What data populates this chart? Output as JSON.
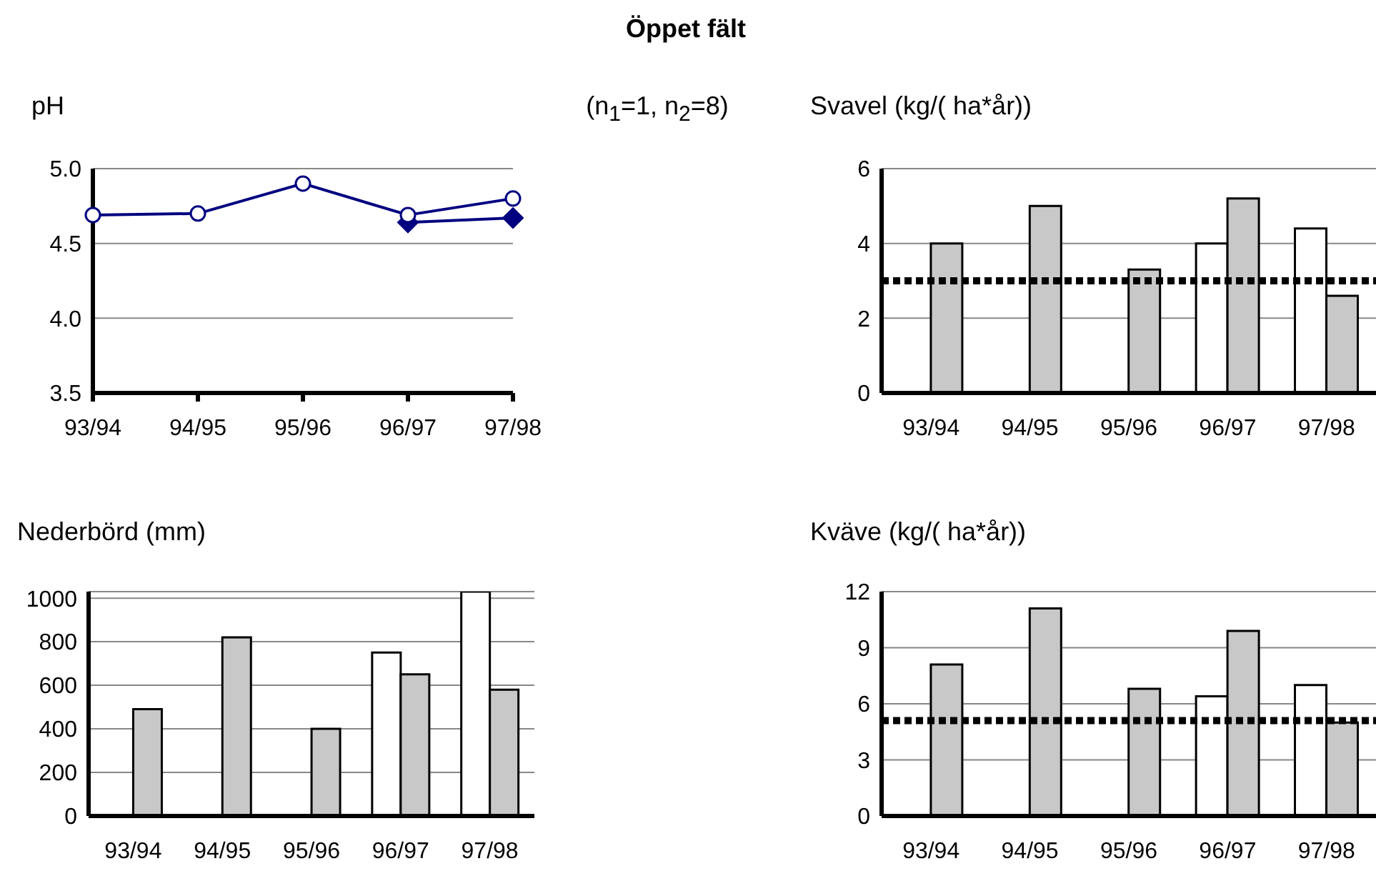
{
  "chart_data": [
    {
      "type": "other",
      "title": "Öppet fält",
      "subtitle": "(n$_{1}$=1, n$_{2}$=8)"
    },
    {
      "type": "line",
      "ylabel": "pH",
      "categories": [
        "93/94",
        "94/95",
        "95/96",
        "96/97",
        "97/98"
      ],
      "series": [
        {
          "color": "#000080",
          "marker": "diamond",
          "values": [
            null,
            null,
            null,
            4.64,
            4.67
          ]
        },
        {
          "color": "#000080",
          "marker": "circle",
          "values": [
            4.69,
            4.7,
            4.9,
            4.69,
            4.8
          ]
        }
      ],
      "ylim": [
        3.5,
        5.0
      ],
      "yticks": [
        {
          "value": 3.5,
          "label": "3.5"
        },
        {
          "value": 4,
          "label": "4.0"
        },
        {
          "value": 4.5,
          "label": "4.5"
        },
        {
          "value": 5,
          "label": "5.0"
        }
      ],
      "grid": "y",
      "legend": false
    },
    {
      "type": "bar",
      "ylabel": "Svavel (kg/( ha*år))",
      "categories": [
        "93/94",
        "94/95",
        "95/96",
        "96/97",
        "97/98"
      ],
      "series": [
        {
          "color": "#ffffff",
          "values": [
            null,
            null,
            null,
            4.0,
            4.4
          ]
        },
        {
          "color": "#c8c8c8",
          "values": [
            4.0,
            5.0,
            3.3,
            5.2,
            2.6
          ]
        }
      ],
      "ylim": [
        0,
        6
      ],
      "yticks": [
        0,
        2,
        4,
        6
      ],
      "grid": "y",
      "legend": false,
      "ref_lines": [
        {
          "axis": "y",
          "value": 3.0,
          "color": "#000000",
          "line_style": "dotted"
        }
      ]
    },
    {
      "type": "bar",
      "ylabel": "Nederbörd (mm)",
      "categories": [
        "93/94",
        "94/95",
        "95/96",
        "96/97",
        "97/98"
      ],
      "series": [
        {
          "color": "#ffffff",
          "values": [
            null,
            null,
            null,
            750,
            1030
          ]
        },
        {
          "color": "#c8c8c8",
          "values": [
            490,
            820,
            400,
            650,
            580
          ]
        }
      ],
      "ylim": [
        0,
        1030
      ],
      "yticks": [
        0,
        200,
        400,
        600,
        800,
        1000
      ],
      "grid": "y",
      "legend": false
    },
    {
      "type": "bar",
      "ylabel": "Kväve (kg/( ha*år))",
      "categories": [
        "93/94",
        "94/95",
        "95/96",
        "96/97",
        "97/98"
      ],
      "series": [
        {
          "color": "#ffffff",
          "values": [
            null,
            null,
            null,
            6.4,
            7.0
          ]
        },
        {
          "color": "#c8c8c8",
          "values": [
            8.1,
            11.1,
            6.8,
            9.9,
            5.0
          ]
        }
      ],
      "ylim": [
        0,
        12
      ],
      "yticks": [
        0,
        3,
        6,
        9,
        12
      ],
      "grid": "y",
      "legend": false,
      "ref_lines": [
        {
          "axis": "y",
          "value": 5.1,
          "color": "#000000",
          "line_style": "dotted"
        }
      ]
    }
  ]
}
